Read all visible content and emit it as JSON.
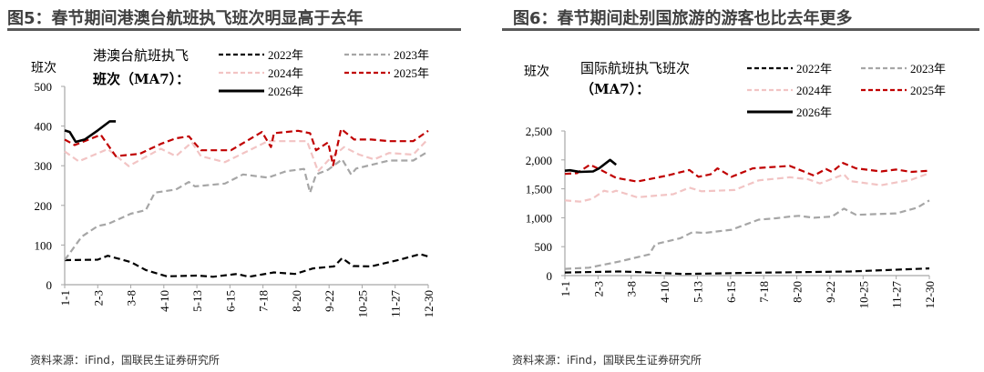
{
  "source_note": "资料来源：iFind，国联民生证券研究所",
  "chart_data": [
    {
      "type": "line",
      "figure_title": "图5：春节期间港澳台航班执飞班次明显高于去年",
      "legend_title": [
        "港澳台航班执飞",
        "班次（MA7）："
      ],
      "ylabel": "班次",
      "ylim": [
        0,
        500
      ],
      "yticks": [
        0,
        100,
        200,
        300,
        400,
        500
      ],
      "ytick_labels": [
        "0",
        "100",
        "200",
        "300",
        "400",
        "500"
      ],
      "xlim": [
        0,
        363
      ],
      "xticks": [
        0,
        33,
        66,
        99,
        132,
        165,
        198,
        231,
        264,
        297,
        330,
        363
      ],
      "xtick_labels": [
        "1-1",
        "2-3",
        "3-8",
        "4-10",
        "5-13",
        "6-15",
        "7-18",
        "8-20",
        "9-22",
        "10-25",
        "11-27",
        "12-30"
      ],
      "series": [
        {
          "name": "2022年",
          "color": "#000000",
          "dash": true,
          "points": [
            [
              0,
              62
            ],
            [
              33,
              63
            ],
            [
              43,
              73
            ],
            [
              66,
              57
            ],
            [
              81,
              37
            ],
            [
              102,
              21
            ],
            [
              133,
              23
            ],
            [
              148,
              20
            ],
            [
              172,
              27
            ],
            [
              184,
              20
            ],
            [
              209,
              31
            ],
            [
              230,
              27
            ],
            [
              248,
              41
            ],
            [
              269,
              46
            ],
            [
              277,
              67
            ],
            [
              288,
              47
            ],
            [
              306,
              46
            ],
            [
              336,
              64
            ],
            [
              355,
              77
            ],
            [
              363,
              71
            ]
          ]
        },
        {
          "name": "2023年",
          "color": "#a6a6a6",
          "dash": true,
          "points": [
            [
              0,
              62
            ],
            [
              17,
              121
            ],
            [
              33,
              148
            ],
            [
              43,
              153
            ],
            [
              66,
              179
            ],
            [
              81,
              188
            ],
            [
              90,
              232
            ],
            [
              111,
              240
            ],
            [
              124,
              259
            ],
            [
              130,
              248
            ],
            [
              160,
              255
            ],
            [
              178,
              278
            ],
            [
              203,
              270
            ],
            [
              221,
              286
            ],
            [
              239,
              292
            ],
            [
              245,
              232
            ],
            [
              251,
              278
            ],
            [
              263,
              290
            ],
            [
              277,
              316
            ],
            [
              286,
              278
            ],
            [
              291,
              293
            ],
            [
              324,
              313
            ],
            [
              348,
              313
            ],
            [
              363,
              336
            ]
          ]
        },
        {
          "name": "2024年",
          "color": "#f2c4c4",
          "dash": true,
          "points": [
            [
              0,
              336
            ],
            [
              14,
              311
            ],
            [
              43,
              342
            ],
            [
              64,
              299
            ],
            [
              96,
              343
            ],
            [
              111,
              324
            ],
            [
              127,
              359
            ],
            [
              136,
              324
            ],
            [
              160,
              309
            ],
            [
              203,
              362
            ],
            [
              242,
              362
            ],
            [
              253,
              286
            ],
            [
              263,
              313
            ],
            [
              279,
              347
            ],
            [
              294,
              328
            ],
            [
              309,
              316
            ],
            [
              324,
              332
            ],
            [
              348,
              328
            ],
            [
              363,
              368
            ]
          ]
        },
        {
          "name": "2025年",
          "color": "#c00000",
          "dash": true,
          "points": [
            [
              0,
              366
            ],
            [
              10,
              352
            ],
            [
              36,
              378
            ],
            [
              51,
              324
            ],
            [
              75,
              330
            ],
            [
              96,
              355
            ],
            [
              111,
              369
            ],
            [
              124,
              374
            ],
            [
              136,
              339
            ],
            [
              166,
              339
            ],
            [
              197,
              385
            ],
            [
              206,
              347
            ],
            [
              209,
              382
            ],
            [
              233,
              388
            ],
            [
              245,
              382
            ],
            [
              251,
              339
            ],
            [
              263,
              359
            ],
            [
              268,
              301
            ],
            [
              276,
              393
            ],
            [
              289,
              366
            ],
            [
              306,
              366
            ],
            [
              324,
              362
            ],
            [
              348,
              362
            ],
            [
              363,
              388
            ]
          ]
        },
        {
          "name": "2026年",
          "color": "#000000",
          "dash": false,
          "points": [
            [
              0,
              389
            ],
            [
              5,
              385
            ],
            [
              11,
              360
            ],
            [
              20,
              366
            ],
            [
              33,
              389
            ],
            [
              45,
              412
            ],
            [
              51,
              412
            ]
          ]
        }
      ]
    },
    {
      "type": "line",
      "figure_title": "图6：春节期间赴别国旅游的游客也比去年更多",
      "legend_title": [
        "国际航班执飞班次",
        "（MA7）："
      ],
      "ylabel": "班次",
      "ylim": [
        0,
        2500
      ],
      "yticks": [
        0,
        500,
        1000,
        1500,
        2000,
        2500
      ],
      "ytick_labels": [
        "0",
        "500",
        "1,000",
        "1,500",
        "2,000",
        "2,500"
      ],
      "xlim": [
        0,
        363
      ],
      "xticks": [
        0,
        33,
        66,
        99,
        132,
        165,
        198,
        231,
        264,
        297,
        330,
        363
      ],
      "xtick_labels": [
        "1-1",
        "2-3",
        "3-8",
        "4-10",
        "5-13",
        "6-15",
        "7-18",
        "8-20",
        "9-22",
        "10-25",
        "11-27",
        "12-30"
      ],
      "series": [
        {
          "name": "2022年",
          "color": "#000000",
          "dash": true,
          "points": [
            [
              0,
              54
            ],
            [
              54,
              71
            ],
            [
              72,
              62
            ],
            [
              118,
              29
            ],
            [
              193,
              50
            ],
            [
              284,
              71
            ],
            [
              363,
              125
            ]
          ]
        },
        {
          "name": "2023年",
          "color": "#a6a6a6",
          "dash": true,
          "points": [
            [
              0,
              117
            ],
            [
              24,
              137
            ],
            [
              54,
              242
            ],
            [
              84,
              367
            ],
            [
              90,
              542
            ],
            [
              115,
              646
            ],
            [
              127,
              750
            ],
            [
              139,
              737
            ],
            [
              166,
              792
            ],
            [
              193,
              967
            ],
            [
              211,
              992
            ],
            [
              224,
              1021
            ],
            [
              233,
              1033
            ],
            [
              248,
              1000
            ],
            [
              266,
              1021
            ],
            [
              278,
              1158
            ],
            [
              290,
              1050
            ],
            [
              330,
              1075
            ],
            [
              351,
              1175
            ],
            [
              363,
              1300
            ]
          ]
        },
        {
          "name": "2024年",
          "color": "#f2c4c4",
          "dash": true,
          "points": [
            [
              0,
              1300
            ],
            [
              15,
              1279
            ],
            [
              27,
              1325
            ],
            [
              39,
              1467
            ],
            [
              46,
              1437
            ],
            [
              51,
              1467
            ],
            [
              72,
              1354
            ],
            [
              108,
              1408
            ],
            [
              124,
              1521
            ],
            [
              136,
              1458
            ],
            [
              169,
              1479
            ],
            [
              193,
              1646
            ],
            [
              224,
              1700
            ],
            [
              242,
              1667
            ],
            [
              254,
              1592
            ],
            [
              278,
              1750
            ],
            [
              284,
              1633
            ],
            [
              315,
              1563
            ],
            [
              345,
              1658
            ],
            [
              363,
              1771
            ]
          ]
        },
        {
          "name": "2025年",
          "color": "#c00000",
          "dash": true,
          "points": [
            [
              0,
              1758
            ],
            [
              12,
              1771
            ],
            [
              25,
              1917
            ],
            [
              34,
              1842
            ],
            [
              51,
              1688
            ],
            [
              72,
              1625
            ],
            [
              102,
              1729
            ],
            [
              124,
              1825
            ],
            [
              133,
              1708
            ],
            [
              145,
              1750
            ],
            [
              152,
              1854
            ],
            [
              166,
              1708
            ],
            [
              187,
              1854
            ],
            [
              224,
              1896
            ],
            [
              248,
              1729
            ],
            [
              260,
              1842
            ],
            [
              266,
              1792
            ],
            [
              277,
              1946
            ],
            [
              290,
              1854
            ],
            [
              315,
              1800
            ],
            [
              330,
              1833
            ],
            [
              345,
              1792
            ],
            [
              363,
              1813
            ]
          ]
        },
        {
          "name": "2026年",
          "color": "#000000",
          "dash": false,
          "points": [
            [
              0,
              1813
            ],
            [
              5,
              1821
            ],
            [
              15,
              1792
            ],
            [
              28,
              1800
            ],
            [
              34,
              1854
            ],
            [
              45,
              2000
            ],
            [
              51,
              1917
            ]
          ]
        }
      ]
    }
  ]
}
